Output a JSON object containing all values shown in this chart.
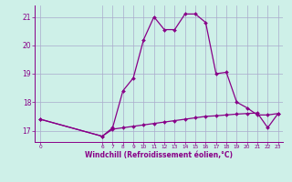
{
  "xlabel": "Windchill (Refroidissement éolien,°C)",
  "bg_color": "#cef0e8",
  "line_color": "#880088",
  "grid_color": "#aaaacc",
  "hours": [
    0,
    6,
    7,
    8,
    9,
    10,
    11,
    12,
    13,
    14,
    15,
    16,
    17,
    18,
    19,
    20,
    21,
    22,
    23
  ],
  "temp": [
    17.4,
    16.8,
    17.1,
    18.4,
    18.85,
    20.2,
    21.0,
    20.55,
    20.55,
    21.1,
    21.1,
    20.8,
    19.0,
    19.05,
    18.0,
    17.8,
    17.55,
    17.55,
    17.6
  ],
  "windchill": [
    17.4,
    16.8,
    17.05,
    17.1,
    17.15,
    17.2,
    17.25,
    17.3,
    17.35,
    17.4,
    17.45,
    17.5,
    17.52,
    17.55,
    17.58,
    17.6,
    17.62,
    17.1,
    17.6
  ],
  "ylim_min": 16.6,
  "ylim_max": 21.4,
  "yticks": [
    17,
    18,
    19,
    20,
    21
  ],
  "xticks": [
    0,
    6,
    7,
    8,
    9,
    10,
    11,
    12,
    13,
    14,
    15,
    16,
    17,
    18,
    19,
    20,
    21,
    22,
    23
  ],
  "xlim_min": -0.5,
  "xlim_max": 23.5
}
